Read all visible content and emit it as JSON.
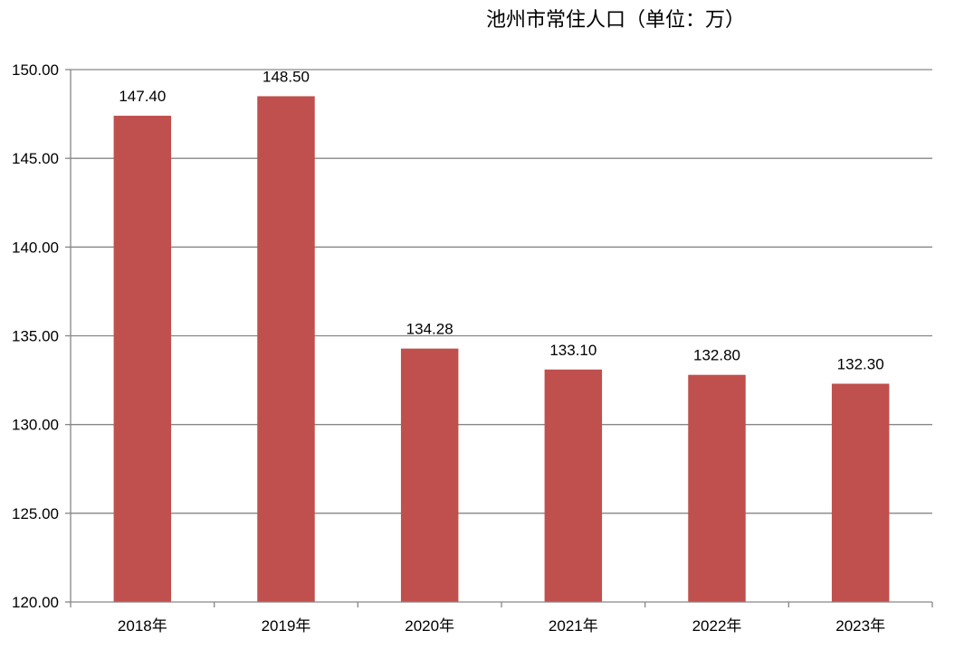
{
  "chart_data": {
    "type": "bar",
    "title": "池州市常住人口（单位：万）",
    "categories": [
      "2018年",
      "2019年",
      "2020年",
      "2021年",
      "2022年",
      "2023年"
    ],
    "values": [
      147.4,
      148.5,
      134.28,
      133.1,
      132.8,
      132.3
    ],
    "value_labels": [
      "147.40",
      "148.50",
      "134.28",
      "133.10",
      "132.80",
      "132.30"
    ],
    "yticks": [
      "120.00",
      "125.00",
      "130.00",
      "135.00",
      "140.00",
      "145.00",
      "150.00"
    ],
    "ylim": [
      120,
      150
    ],
    "grid": true,
    "legend": "none",
    "bar_color": "#C0504D",
    "gridline_color": "#868686"
  }
}
